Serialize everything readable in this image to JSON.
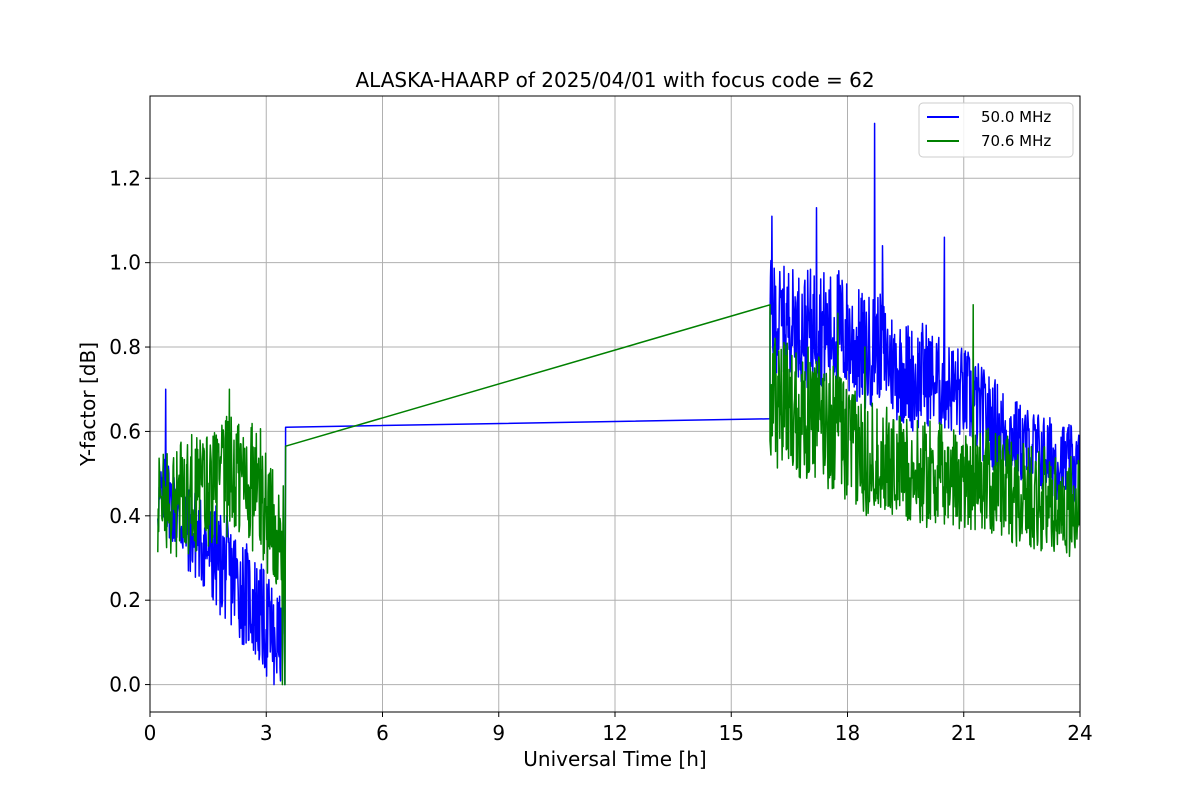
{
  "chart_data": {
    "type": "line",
    "title": "ALASKA-HAARP of 2025/04/01 with focus code = 62",
    "xlabel": "Universal Time [h]",
    "ylabel": "Y-factor [dB]",
    "xlim": [
      0,
      24
    ],
    "ylim": [
      -0.065,
      1.395
    ],
    "xticks": [
      0,
      3,
      6,
      9,
      12,
      15,
      18,
      21,
      24
    ],
    "xtick_labels": [
      "0",
      "3",
      "6",
      "9",
      "12",
      "15",
      "18",
      "21",
      "24"
    ],
    "yticks": [
      0.0,
      0.2,
      0.4,
      0.6,
      0.8,
      1.0,
      1.2
    ],
    "ytick_labels": [
      "0.0",
      "0.2",
      "0.4",
      "0.6",
      "0.8",
      "1.0",
      "1.2"
    ],
    "grid": true,
    "legend_position": "top-right",
    "series": [
      {
        "name": "50.0 MHz",
        "color": "#0000ff",
        "x": [
          0.2,
          0.4,
          0.6,
          0.8,
          1.0,
          1.2,
          1.4,
          1.6,
          1.8,
          2.0,
          2.2,
          2.4,
          2.6,
          2.8,
          3.0,
          3.2,
          3.4,
          3.5,
          16.0,
          16.0,
          16.25,
          16.5,
          16.75,
          17.0,
          17.25,
          17.5,
          17.75,
          18.0,
          18.25,
          18.5,
          18.75,
          19.0,
          19.25,
          19.5,
          19.75,
          20.0,
          20.25,
          20.5,
          20.75,
          21.0,
          21.25,
          21.5,
          21.75,
          22.0,
          22.25,
          22.5,
          22.75,
          23.0,
          23.25,
          23.5,
          23.75,
          24.0
        ],
        "y": [
          0.43,
          0.46,
          0.42,
          0.39,
          0.37,
          0.35,
          0.33,
          0.31,
          0.29,
          0.27,
          0.25,
          0.22,
          0.2,
          0.17,
          0.14,
          0.12,
          0.1,
          0.61,
          0.63,
          0.88,
          0.86,
          0.87,
          0.85,
          0.84,
          0.86,
          0.83,
          0.85,
          0.82,
          0.8,
          0.78,
          0.81,
          0.78,
          0.75,
          0.74,
          0.72,
          0.74,
          0.72,
          0.71,
          0.7,
          0.69,
          0.67,
          0.64,
          0.62,
          0.6,
          0.59,
          0.57,
          0.56,
          0.55,
          0.54,
          0.53,
          0.52,
          0.51
        ],
        "amplitude": [
          0.05,
          0.06,
          0.06,
          0.06,
          0.07,
          0.07,
          0.07,
          0.08,
          0.08,
          0.08,
          0.08,
          0.08,
          0.08,
          0.08,
          0.08,
          0.08,
          0.06,
          0.0,
          0.0,
          0.08,
          0.08,
          0.08,
          0.08,
          0.09,
          0.09,
          0.09,
          0.09,
          0.09,
          0.09,
          0.09,
          0.08,
          0.08,
          0.08,
          0.08,
          0.08,
          0.08,
          0.07,
          0.07,
          0.07,
          0.07,
          0.07,
          0.07,
          0.07,
          0.07,
          0.06,
          0.06,
          0.06,
          0.06,
          0.06,
          0.06,
          0.06,
          0.06
        ],
        "spikes": [
          {
            "x": 16.05,
            "y": 1.11
          },
          {
            "x": 17.2,
            "y": 1.13
          },
          {
            "x": 18.7,
            "y": 1.33
          },
          {
            "x": 18.9,
            "y": 1.04
          },
          {
            "x": 20.5,
            "y": 1.06
          },
          {
            "x": 0.4,
            "y": 0.7
          },
          {
            "x": 3.2,
            "y": 0.0
          }
        ]
      },
      {
        "name": "70.6 MHz",
        "color": "#008000",
        "x": [
          0.2,
          0.4,
          0.6,
          0.8,
          1.0,
          1.2,
          1.4,
          1.6,
          1.8,
          2.0,
          2.2,
          2.4,
          2.6,
          2.8,
          3.0,
          3.2,
          3.4,
          3.5,
          16.0,
          16.0,
          16.25,
          16.5,
          16.75,
          17.0,
          17.25,
          17.5,
          17.75,
          18.0,
          18.25,
          18.5,
          18.75,
          19.0,
          19.25,
          19.5,
          19.75,
          20.0,
          20.25,
          20.5,
          20.75,
          21.0,
          21.25,
          21.5,
          21.75,
          22.0,
          22.25,
          22.5,
          22.75,
          23.0,
          23.25,
          23.5,
          23.75,
          24.0
        ],
        "y": [
          0.42,
          0.43,
          0.43,
          0.44,
          0.45,
          0.46,
          0.46,
          0.47,
          0.48,
          0.48,
          0.49,
          0.49,
          0.48,
          0.46,
          0.42,
          0.38,
          0.3,
          0.565,
          0.585,
          0.68,
          0.66,
          0.66,
          0.65,
          0.64,
          0.63,
          0.62,
          0.6,
          0.57,
          0.55,
          0.54,
          0.54,
          0.53,
          0.52,
          0.51,
          0.5,
          0.5,
          0.5,
          0.49,
          0.49,
          0.49,
          0.49,
          0.48,
          0.48,
          0.47,
          0.46,
          0.45,
          0.45,
          0.44,
          0.43,
          0.43,
          0.42,
          0.42
        ],
        "amplitude": [
          0.08,
          0.08,
          0.08,
          0.09,
          0.09,
          0.09,
          0.09,
          0.09,
          0.09,
          0.1,
          0.1,
          0.1,
          0.1,
          0.1,
          0.1,
          0.08,
          0.07,
          0.0,
          0.0,
          0.1,
          0.1,
          0.1,
          0.1,
          0.1,
          0.1,
          0.1,
          0.09,
          0.09,
          0.09,
          0.09,
          0.08,
          0.08,
          0.08,
          0.08,
          0.08,
          0.08,
          0.08,
          0.08,
          0.08,
          0.08,
          0.08,
          0.08,
          0.08,
          0.08,
          0.08,
          0.08,
          0.08,
          0.08,
          0.08,
          0.08,
          0.08,
          0.08
        ],
        "spikes": [
          {
            "x": 16.0,
            "y": 0.9
          },
          {
            "x": 17.75,
            "y": 0.88
          },
          {
            "x": 18.45,
            "y": 0.8
          },
          {
            "x": 21.25,
            "y": 0.9
          },
          {
            "x": 2.05,
            "y": 0.7
          },
          {
            "x": 3.42,
            "y": 0.0
          }
        ]
      }
    ]
  }
}
